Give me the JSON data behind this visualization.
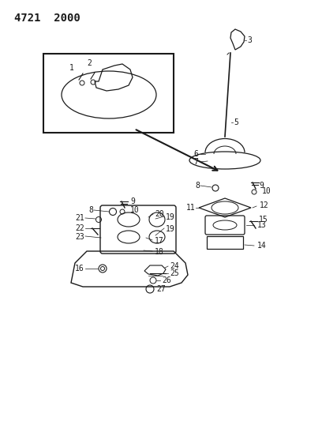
{
  "title": "4721  2000",
  "bg_color": "#ffffff",
  "line_color": "#1a1a1a",
  "title_fontsize": 10,
  "label_fontsize": 7,
  "figsize": [
    4.08,
    5.33
  ],
  "dpi": 100
}
